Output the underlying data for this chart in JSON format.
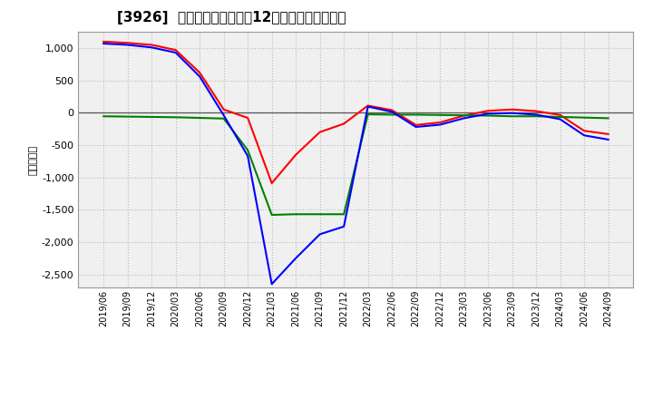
{
  "title": "[3926]  キャッシュフローの12か月移動合計の推移",
  "ylabel": "（百万円）",
  "background_color": "#ffffff",
  "plot_bg_color": "#f0f0f0",
  "grid_color": "#bbbbbb",
  "x_labels": [
    "2019/06",
    "2019/09",
    "2019/12",
    "2020/03",
    "2020/06",
    "2020/09",
    "2020/12",
    "2021/03",
    "2021/06",
    "2021/09",
    "2021/12",
    "2022/03",
    "2022/06",
    "2022/09",
    "2022/12",
    "2023/03",
    "2023/06",
    "2023/09",
    "2023/12",
    "2024/03",
    "2024/06",
    "2024/09"
  ],
  "operating_cf": [
    1100,
    1080,
    1050,
    970,
    620,
    50,
    -80,
    -1090,
    -650,
    -300,
    -170,
    110,
    40,
    -190,
    -150,
    -45,
    30,
    50,
    25,
    -35,
    -280,
    -330
  ],
  "investing_cf": [
    -55,
    -60,
    -65,
    -70,
    -80,
    -90,
    -580,
    -1580,
    -1570,
    -1570,
    -1570,
    -25,
    -30,
    -30,
    -35,
    -40,
    -45,
    -55,
    -55,
    -65,
    -75,
    -85
  ],
  "free_cf": [
    1070,
    1050,
    1010,
    930,
    560,
    -40,
    -670,
    -2650,
    -2250,
    -1880,
    -1760,
    95,
    15,
    -220,
    -185,
    -85,
    -15,
    -5,
    -30,
    -100,
    -350,
    -415
  ],
  "ylim": [
    -2700,
    1250
  ],
  "yticks": [
    -2500,
    -2000,
    -1500,
    -1000,
    -500,
    0,
    500,
    1000
  ],
  "line_colors": {
    "operating": "#ff0000",
    "investing": "#008000",
    "free": "#0000ff"
  }
}
